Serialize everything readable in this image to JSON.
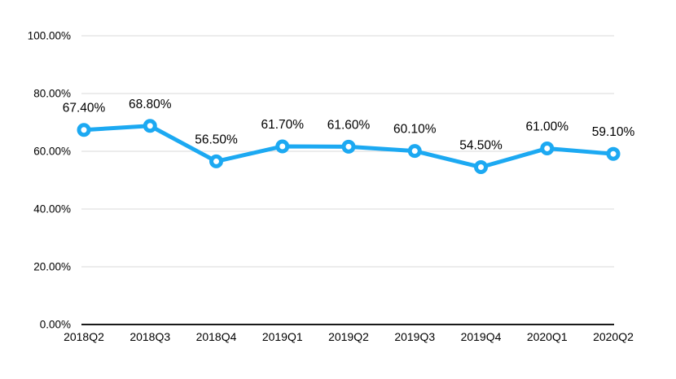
{
  "chart_data": {
    "type": "line",
    "title": "",
    "xlabel": "",
    "ylabel": "",
    "categories": [
      "2018Q2",
      "2018Q3",
      "2018Q4",
      "2019Q1",
      "2019Q2",
      "2019Q3",
      "2019Q4",
      "2020Q1",
      "2020Q2"
    ],
    "values": [
      67.4,
      68.8,
      56.5,
      61.7,
      61.6,
      60.1,
      54.5,
      61.0,
      59.1
    ],
    "data_labels": [
      "67.40%",
      "68.80%",
      "56.50%",
      "61.70%",
      "61.60%",
      "60.10%",
      "54.50%",
      "61.00%",
      "59.10%"
    ],
    "y_ticks": [
      {
        "value": 0,
        "label": "0.00%"
      },
      {
        "value": 20,
        "label": "20.00%"
      },
      {
        "value": 40,
        "label": "40.00%"
      },
      {
        "value": 60,
        "label": "60.00%"
      },
      {
        "value": 80,
        "label": "80.00%"
      },
      {
        "value": 100,
        "label": "100.00%"
      }
    ],
    "ylim": [
      0,
      100
    ],
    "grid": true,
    "legend_position": "none",
    "colors": {
      "line": "#1CA9F2",
      "marker_fill": "#FFFFFF",
      "grid": "#D9D9D9",
      "axis": "#1A1A1A",
      "tick_label": "#000000",
      "data_label": "#000000",
      "background": "#FFFFFF"
    }
  }
}
